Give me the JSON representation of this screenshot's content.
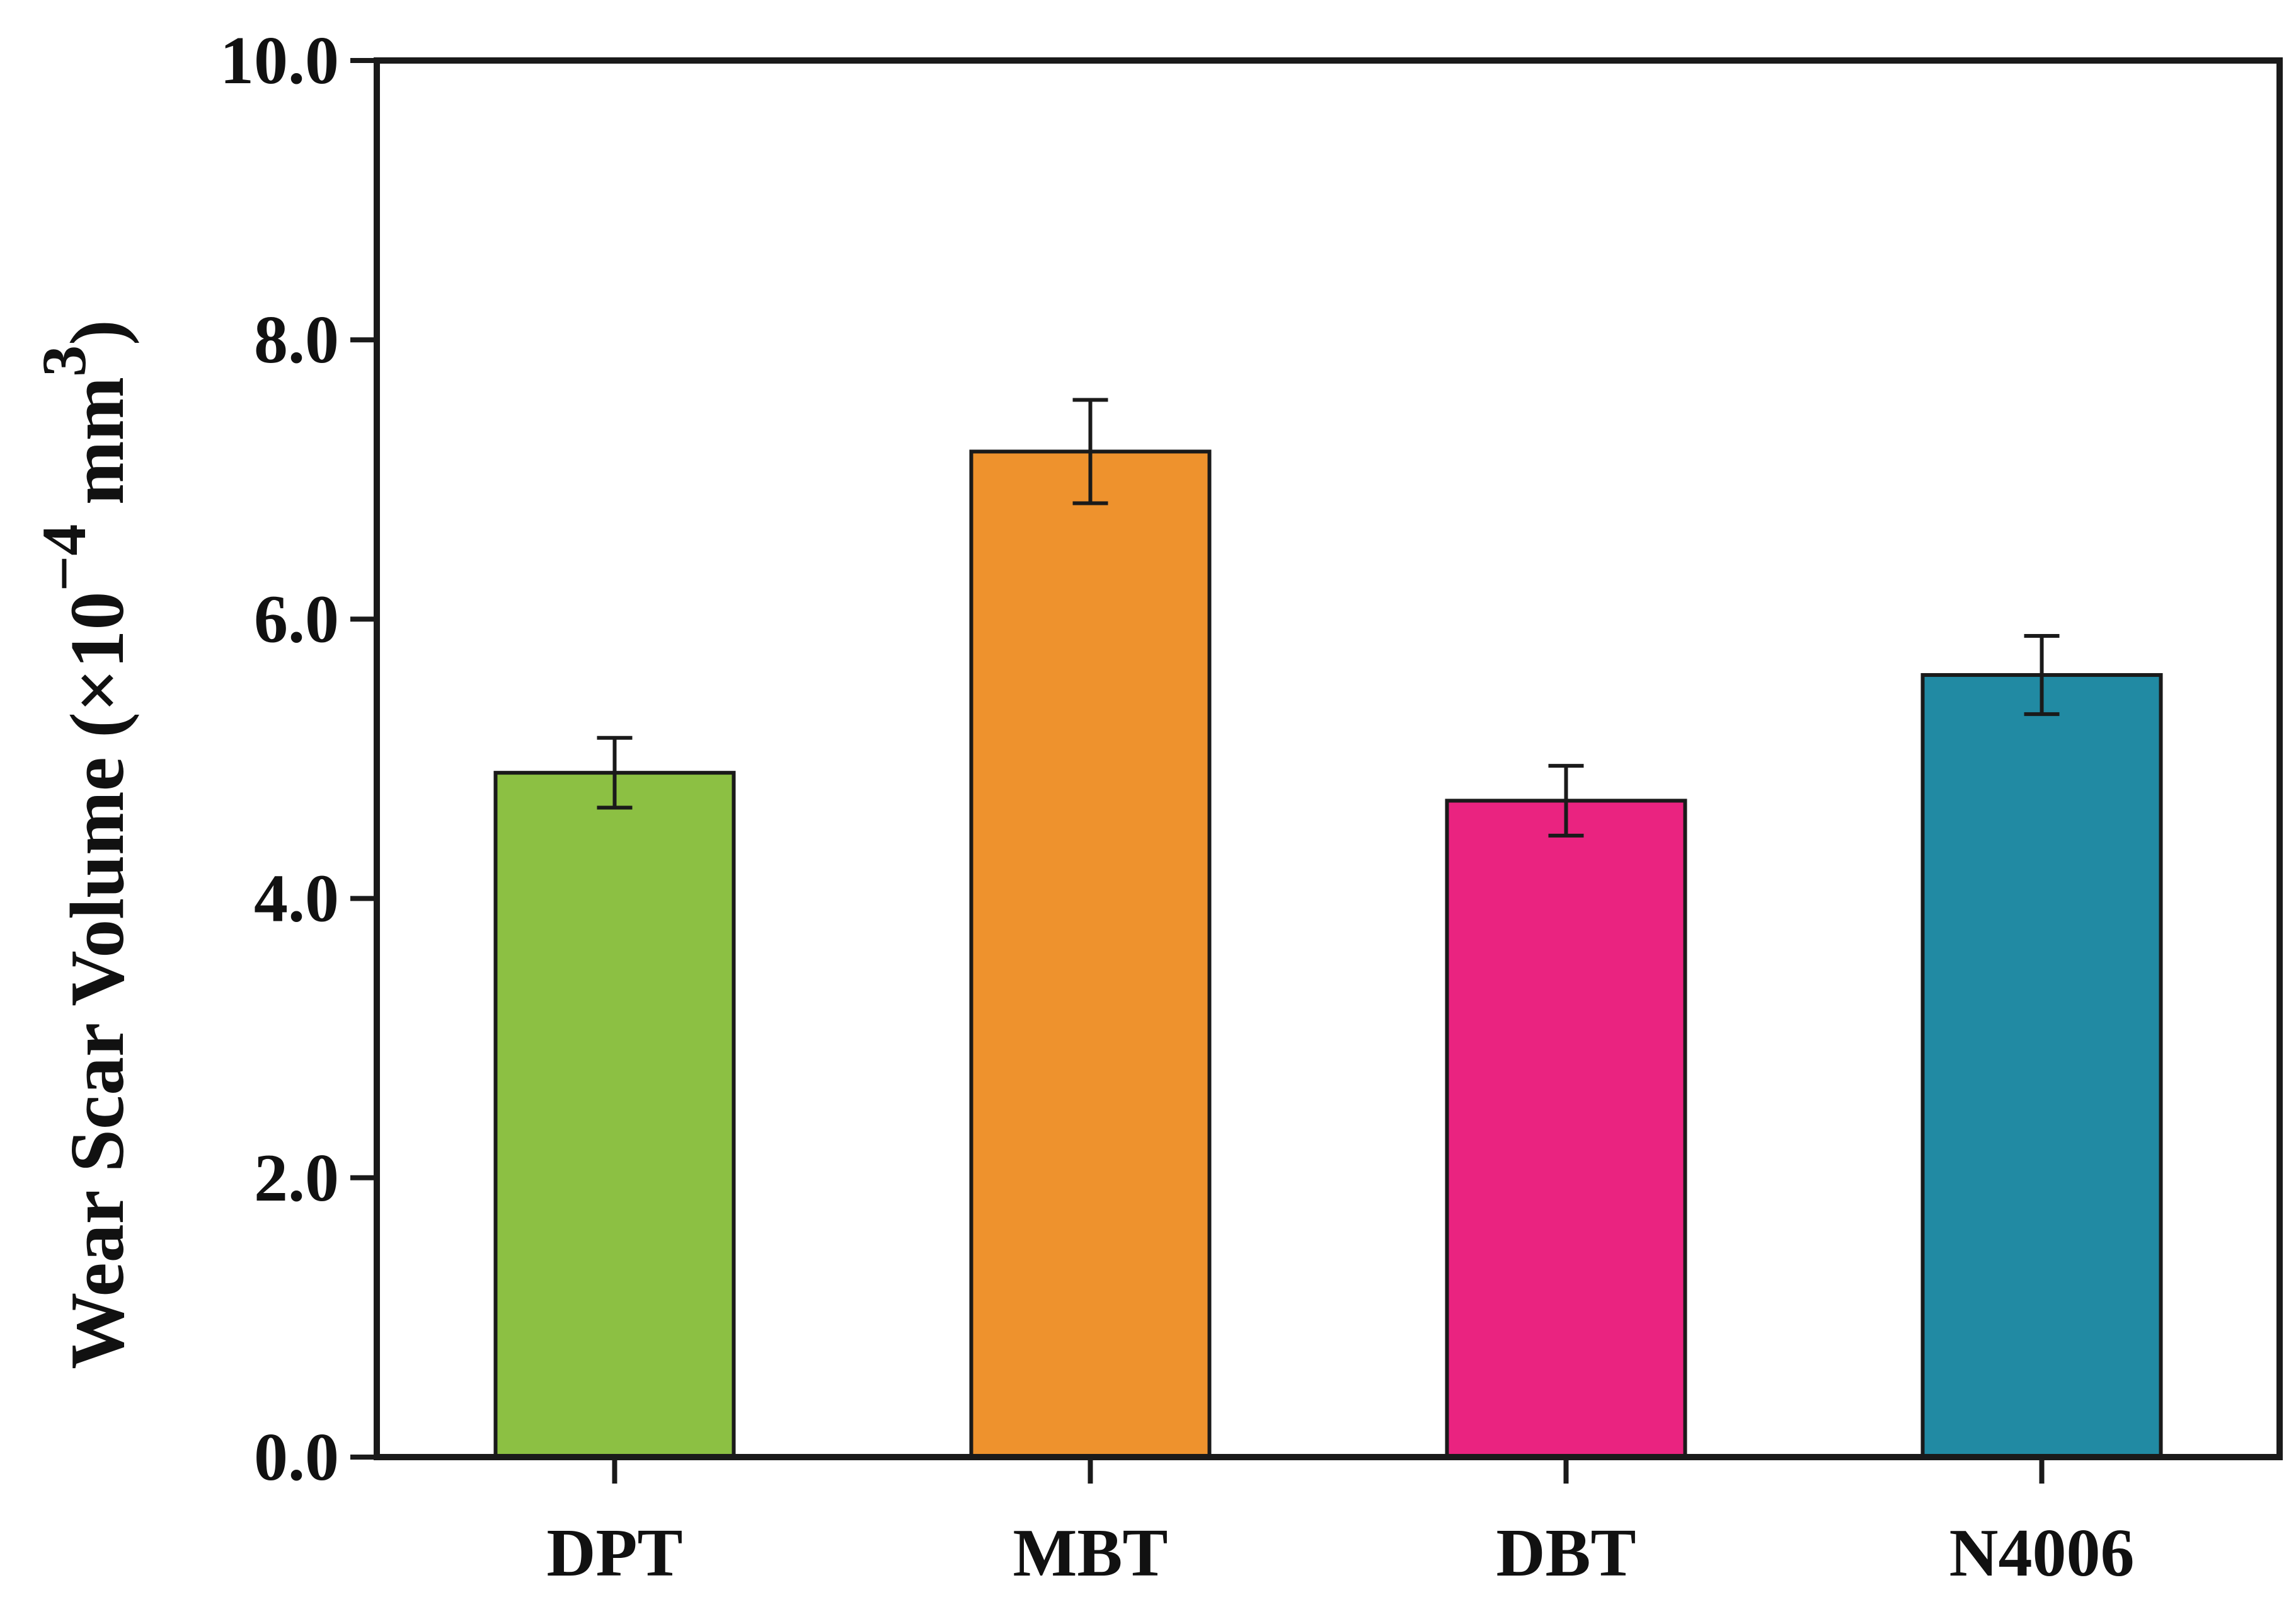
{
  "chart_data": {
    "type": "bar",
    "title": "",
    "xlabel": "",
    "ylabel": {
      "main": "Wear Scar Volume (×10",
      "exponent": "−4",
      "unit": " mm",
      "unit_exponent": "3",
      "close": ")"
    },
    "ylim": [
      0,
      10
    ],
    "yticks": [
      "0.0",
      "2.0",
      "4.0",
      "6.0",
      "8.0",
      "10.0"
    ],
    "categories": [
      "DPT",
      "MBT",
      "DBT",
      "N4006"
    ],
    "values": [
      4.9,
      7.2,
      4.7,
      5.6
    ],
    "errors": [
      0.25,
      0.37,
      0.25,
      0.28
    ],
    "colors": [
      "#8cc043",
      "#ee922d",
      "#ea2380",
      "#218aa3"
    ],
    "grid": false,
    "legend": "none"
  }
}
